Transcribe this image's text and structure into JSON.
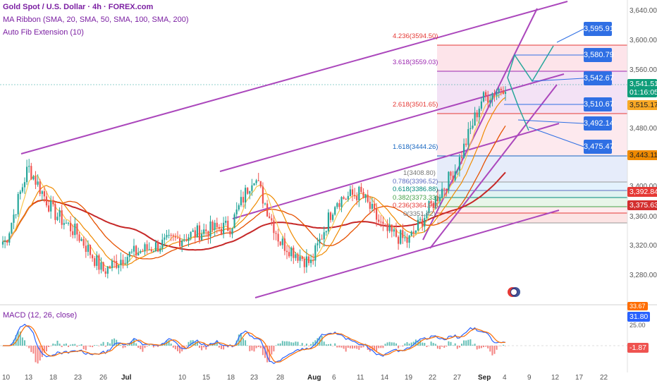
{
  "header": {
    "title": "Gold Spot / U.S. Dollar · 4h · FOREX.com",
    "ma_ribbon": "MA Ribbon (SMA, 20, SMA, 50, SMA, 100, SMA, 200)",
    "auto_fib": "Auto Fib Extension (10)"
  },
  "macd": {
    "title": "MACD (12, 26, close)",
    "value_blue": "31.80",
    "value_red": "-1.87",
    "value_top": "33.67",
    "level_25": "25.00"
  },
  "price_axis": [
    "3,640.00",
    "3,600.00",
    "3,560.00",
    "3,520.00",
    "3,480.00",
    "3,440.00",
    "3,400.00",
    "3,360.00",
    "3,320.00",
    "3,280.00"
  ],
  "current_price": {
    "value": "3,541.51",
    "timer": "01:16:05"
  },
  "price_badges": [
    {
      "label": "3,515.17",
      "color": "#f9a825"
    },
    {
      "label": "3,443.11",
      "color": "#ef8a00"
    },
    {
      "label": "3,392.84",
      "color": "#e53935"
    },
    {
      "label": "3,375.63",
      "color": "#d32f2f"
    }
  ],
  "targets": [
    "3,595.91",
    "3,580.79",
    "3,542.67",
    "3,510.67",
    "3,492.14",
    "3,475.47"
  ],
  "fib_levels": [
    {
      "label": "4.236(3594.50)",
      "color": "#e53935"
    },
    {
      "label": "3.618(3559.03)",
      "color": "#9c27b0"
    },
    {
      "label": "2.618(3501.65)",
      "color": "#e53935"
    },
    {
      "label": "1.618(3444.26)",
      "color": "#1565c0"
    },
    {
      "label": "1(3408.80)",
      "color": "#777777"
    },
    {
      "label": "0.786(3396.52)",
      "color": "#5c6bc0"
    },
    {
      "label": "0.618(3386.88)",
      "color": "#00897b"
    },
    {
      "label": "0.382(3373.33)",
      "color": "#43a047"
    },
    {
      "label": "0.236(3364.96)",
      "color": "#e53935"
    },
    {
      "label": "0(3351.42)",
      "color": "#777777"
    }
  ],
  "x_axis": [
    {
      "label": "10",
      "bold": false
    },
    {
      "label": "13",
      "bold": false
    },
    {
      "label": "18",
      "bold": false
    },
    {
      "label": "23",
      "bold": false
    },
    {
      "label": "26",
      "bold": false
    },
    {
      "label": "Jul",
      "bold": true
    },
    {
      "label": "10",
      "bold": false
    },
    {
      "label": "15",
      "bold": false
    },
    {
      "label": "18",
      "bold": false
    },
    {
      "label": "23",
      "bold": false
    },
    {
      "label": "28",
      "bold": false
    },
    {
      "label": "Aug",
      "bold": true
    },
    {
      "label": "6",
      "bold": false
    },
    {
      "label": "11",
      "bold": false
    },
    {
      "label": "14",
      "bold": false
    },
    {
      "label": "19",
      "bold": false
    },
    {
      "label": "22",
      "bold": false
    },
    {
      "label": "27",
      "bold": false
    },
    {
      "label": "Sep",
      "bold": true
    },
    {
      "label": "4",
      "bold": false
    },
    {
      "label": "9",
      "bold": false
    },
    {
      "label": "12",
      "bold": false
    },
    {
      "label": "17",
      "bold": false
    },
    {
      "label": "22",
      "bold": false
    }
  ],
  "chart_data": {
    "type": "line",
    "symbol": "Gold Spot / U.S. Dollar",
    "timeframe": "4h",
    "ylim": [
      3260,
      3650
    ],
    "series": [
      {
        "x": [
          "10",
          "13",
          "18",
          "23",
          "26",
          "Jul",
          "10",
          "15",
          "18",
          "23",
          "28",
          "Aug",
          "6",
          "11",
          "14",
          "19",
          "22",
          "27",
          "Sep",
          "4"
        ],
        "values": [
          3330,
          3430,
          3370,
          3340,
          3290,
          3310,
          3335,
          3345,
          3350,
          3420,
          3330,
          3300,
          3385,
          3395,
          3345,
          3330,
          3380,
          3430,
          3520,
          3541
        ]
      }
    ]
  }
}
